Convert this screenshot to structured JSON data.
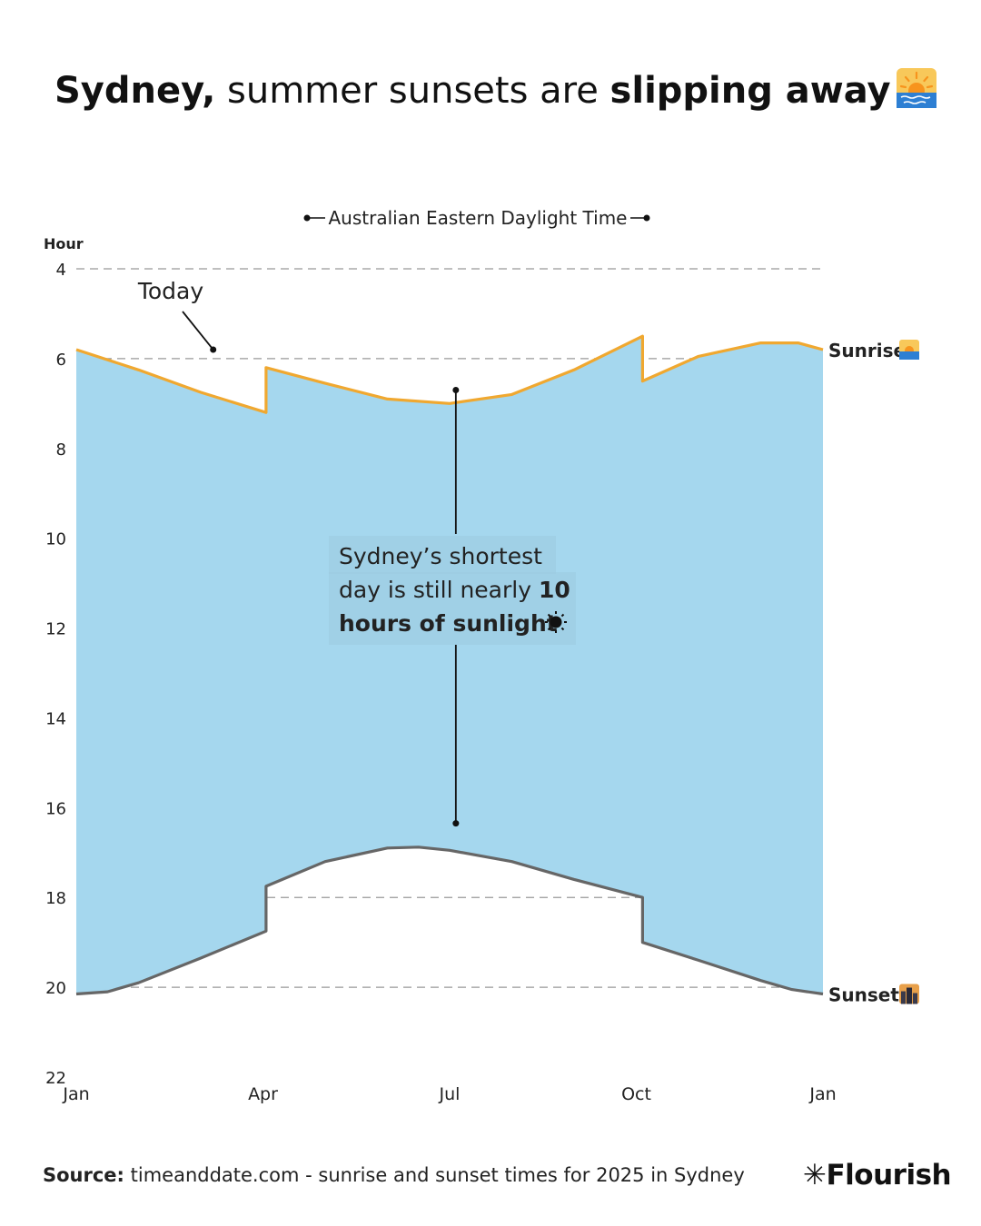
{
  "title": {
    "part1_bold": "Sydney,",
    "part2": " summer sunsets are ",
    "part3_bold": "slipping away",
    "icon": "sunrise-emoji"
  },
  "footer": {
    "source_label": "Source:",
    "source_text": " timeanddate.com - sunrise and sunset times for 2025 in Sydney",
    "brand": "Flourish"
  },
  "chart_data": {
    "type": "area",
    "title": "Sydney, summer sunsets are slipping away",
    "ylabel": "Hour",
    "ylim": [
      4,
      22
    ],
    "y_inverted": true,
    "y_ticks": [
      4,
      6,
      8,
      10,
      12,
      14,
      16,
      18,
      20,
      22
    ],
    "x_ticks": [
      {
        "label": "Jan",
        "month": 0
      },
      {
        "label": "Apr",
        "month": 3
      },
      {
        "label": "Jul",
        "month": 6
      },
      {
        "label": "Oct",
        "month": 9
      },
      {
        "label": "Jan",
        "month": 12
      }
    ],
    "grid": true,
    "fill_color": "#a5d7ee",
    "dst_label": "Australian Eastern Daylight Time",
    "dst_bracket_months": [
      0,
      12
    ],
    "series": [
      {
        "name": "Sunrise",
        "icon": "sunrise-emoji",
        "color": "#f0a830",
        "points": [
          [
            0,
            5.8
          ],
          [
            1,
            6.25
          ],
          [
            2,
            6.75
          ],
          [
            3.05,
            7.2
          ],
          [
            3.05,
            6.2
          ],
          [
            4,
            6.55
          ],
          [
            5,
            6.9
          ],
          [
            6,
            7.0
          ],
          [
            7,
            6.8
          ],
          [
            8,
            6.25
          ],
          [
            9.1,
            5.5
          ],
          [
            9.1,
            6.5
          ],
          [
            10,
            5.95
          ],
          [
            11,
            5.65
          ],
          [
            11.6,
            5.65
          ],
          [
            12,
            5.8
          ]
        ]
      },
      {
        "name": "Sunset",
        "icon": "cityscape-dusk-emoji",
        "color": "#666666",
        "points": [
          [
            0,
            20.15
          ],
          [
            0.5,
            20.1
          ],
          [
            1,
            19.9
          ],
          [
            2,
            19.35
          ],
          [
            3.05,
            18.75
          ],
          [
            3.05,
            17.75
          ],
          [
            4,
            17.2
          ],
          [
            5,
            16.9
          ],
          [
            5.5,
            16.88
          ],
          [
            6,
            16.95
          ],
          [
            7,
            17.2
          ],
          [
            8,
            17.6
          ],
          [
            9.1,
            18.0
          ],
          [
            9.1,
            19.0
          ],
          [
            10,
            19.4
          ],
          [
            11,
            19.85
          ],
          [
            11.5,
            20.05
          ],
          [
            12,
            20.15
          ]
        ]
      }
    ],
    "annotations": [
      {
        "text": "Today",
        "month": 2.2,
        "hour": 5.8
      },
      {
        "text_parts": [
          {
            "text": "Sydney’s shortest",
            "bold": false
          },
          {
            "text": "day is still nearly ",
            "bold": false
          },
          {
            "text": "10",
            "bold": true
          },
          {
            "text": "hours of sunlight",
            "bold": true
          }
        ],
        "icon": "sun-emoji",
        "month": 6.1,
        "hour_range": [
          6.7,
          16.35
        ]
      }
    ]
  }
}
